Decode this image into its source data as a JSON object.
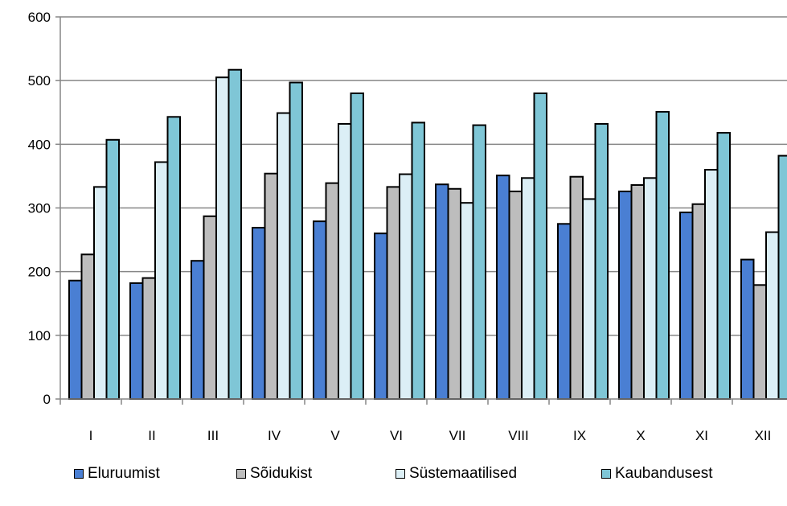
{
  "chart_data": {
    "type": "bar",
    "categories": [
      "I",
      "II",
      "III",
      "IV",
      "V",
      "VI",
      "VII",
      "VIII",
      "IX",
      "X",
      "XI",
      "XII"
    ],
    "series": [
      {
        "name": "Eluruumist",
        "color": "#4a7fd3",
        "values": [
          186,
          182,
          217,
          269,
          279,
          260,
          337,
          351,
          275,
          326,
          293,
          219
        ]
      },
      {
        "name": "Sõidukist",
        "color": "#bdbdbd",
        "values": [
          227,
          190,
          287,
          354,
          339,
          333,
          330,
          326,
          349,
          336,
          306,
          179
        ]
      },
      {
        "name": "Süstemaatilised",
        "color": "#dceff6",
        "values": [
          333,
          372,
          505,
          449,
          432,
          353,
          308,
          347,
          314,
          347,
          360,
          262
        ]
      },
      {
        "name": "Kaubandusest",
        "color": "#7fc6d6",
        "values": [
          407,
          443,
          517,
          497,
          480,
          434,
          430,
          480,
          432,
          451,
          418,
          382
        ]
      }
    ],
    "ylim": [
      0,
      600
    ],
    "yticks": [
      0,
      100,
      200,
      300,
      400,
      500,
      600
    ],
    "grid": true,
    "legend_position": "bottom"
  }
}
